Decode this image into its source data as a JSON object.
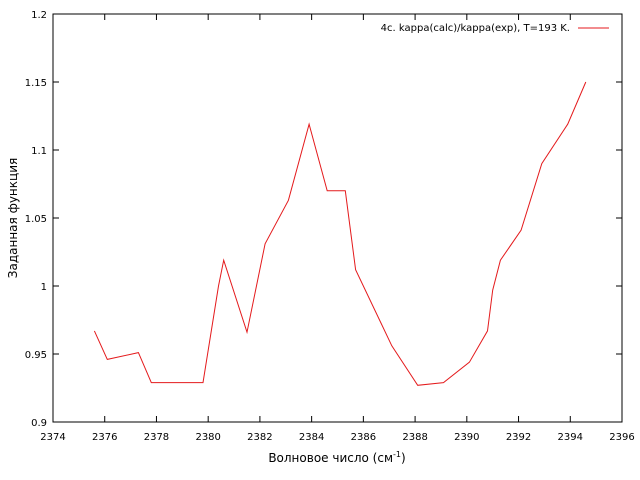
{
  "chart_data": {
    "type": "line",
    "title": "",
    "xlabel": "Волновое число (см",
    "xlabel_sup": "-1",
    "xlabel_tail": ")",
    "ylabel": "Заданная функция",
    "xlim": [
      2374,
      2396
    ],
    "ylim": [
      0.9,
      1.2
    ],
    "xticks": [
      "2374",
      "2376",
      "2378",
      "2380",
      "2382",
      "2384",
      "2386",
      "2388",
      "2390",
      "2392",
      "2394",
      "2396"
    ],
    "yticks": [
      "0.9",
      "0.95",
      "1",
      "1.05",
      "1.1",
      "1.15",
      "1.2"
    ],
    "grid": false,
    "legend_position": "top-right",
    "series": [
      {
        "name": "4c. kappa(calc)/kappa(exp), T=193 K.",
        "color": "#e41a1c",
        "x": [
          2375.6,
          2376.1,
          2377.3,
          2377.8,
          2379.8,
          2380.4,
          2380.6,
          2381.5,
          2382.2,
          2383.1,
          2383.9,
          2384.6,
          2385.3,
          2385.7,
          2387.1,
          2388.1,
          2389.1,
          2390.1,
          2390.8,
          2391.0,
          2391.3,
          2392.1,
          2392.9,
          2393.9,
          2394.6
        ],
        "y": [
          0.967,
          0.946,
          0.951,
          0.929,
          0.929,
          1.0,
          1.019,
          0.966,
          1.031,
          1.063,
          1.119,
          1.07,
          1.07,
          1.012,
          0.956,
          0.927,
          0.929,
          0.944,
          0.967,
          0.997,
          1.019,
          1.041,
          1.09,
          1.119,
          1.15
        ]
      }
    ]
  }
}
